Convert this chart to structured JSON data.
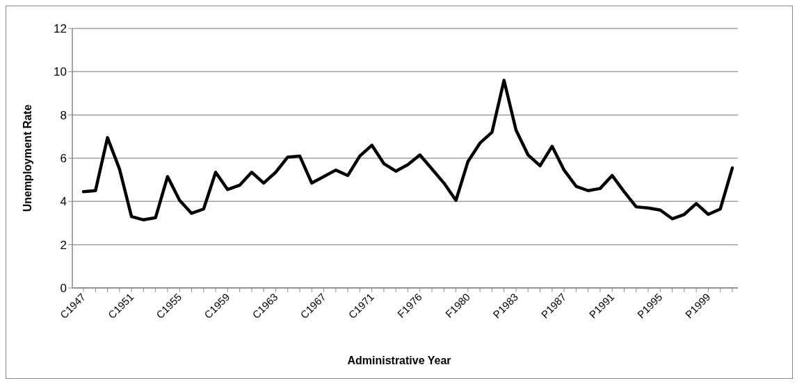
{
  "chart_data": {
    "type": "line",
    "xlabel": "Administrative Year",
    "ylabel": "Unemployment Rate",
    "categories": [
      "C1947",
      null,
      null,
      null,
      "C1951",
      null,
      null,
      null,
      "C1955",
      null,
      null,
      null,
      "C1959",
      null,
      null,
      null,
      "C1963",
      null,
      null,
      null,
      "C1967",
      null,
      null,
      null,
      "C1971",
      null,
      null,
      null,
      "F1976",
      null,
      null,
      null,
      "F1980",
      null,
      null,
      null,
      "P1983",
      null,
      null,
      null,
      "P1987",
      null,
      null,
      null,
      "P1991",
      null,
      null,
      null,
      "P1995",
      null,
      null,
      null,
      "P1999",
      null,
      null
    ],
    "series": [
      {
        "color": "#000000",
        "values": [
          4.45,
          4.5,
          6.95,
          5.5,
          3.3,
          3.15,
          3.25,
          5.15,
          4.05,
          3.45,
          3.65,
          5.35,
          4.55,
          4.75,
          5.35,
          4.85,
          5.35,
          6.05,
          6.1,
          4.85,
          5.15,
          5.45,
          5.2,
          6.1,
          6.6,
          5.75,
          5.4,
          5.7,
          6.15,
          5.5,
          4.85,
          4.05,
          5.85,
          6.7,
          7.2,
          9.6,
          7.3,
          6.15,
          5.65,
          6.55,
          5.45,
          4.7,
          4.5,
          4.6,
          5.2,
          4.45,
          3.75,
          3.7,
          3.6,
          3.2,
          3.4,
          3.9,
          3.4,
          3.65,
          5.55
        ]
      }
    ],
    "ylim": [
      0,
      12
    ],
    "yticks": [
      0,
      2,
      4,
      6,
      8,
      10,
      12
    ],
    "grid": "y",
    "legend": false,
    "marker": "none",
    "line_style": "solid"
  }
}
